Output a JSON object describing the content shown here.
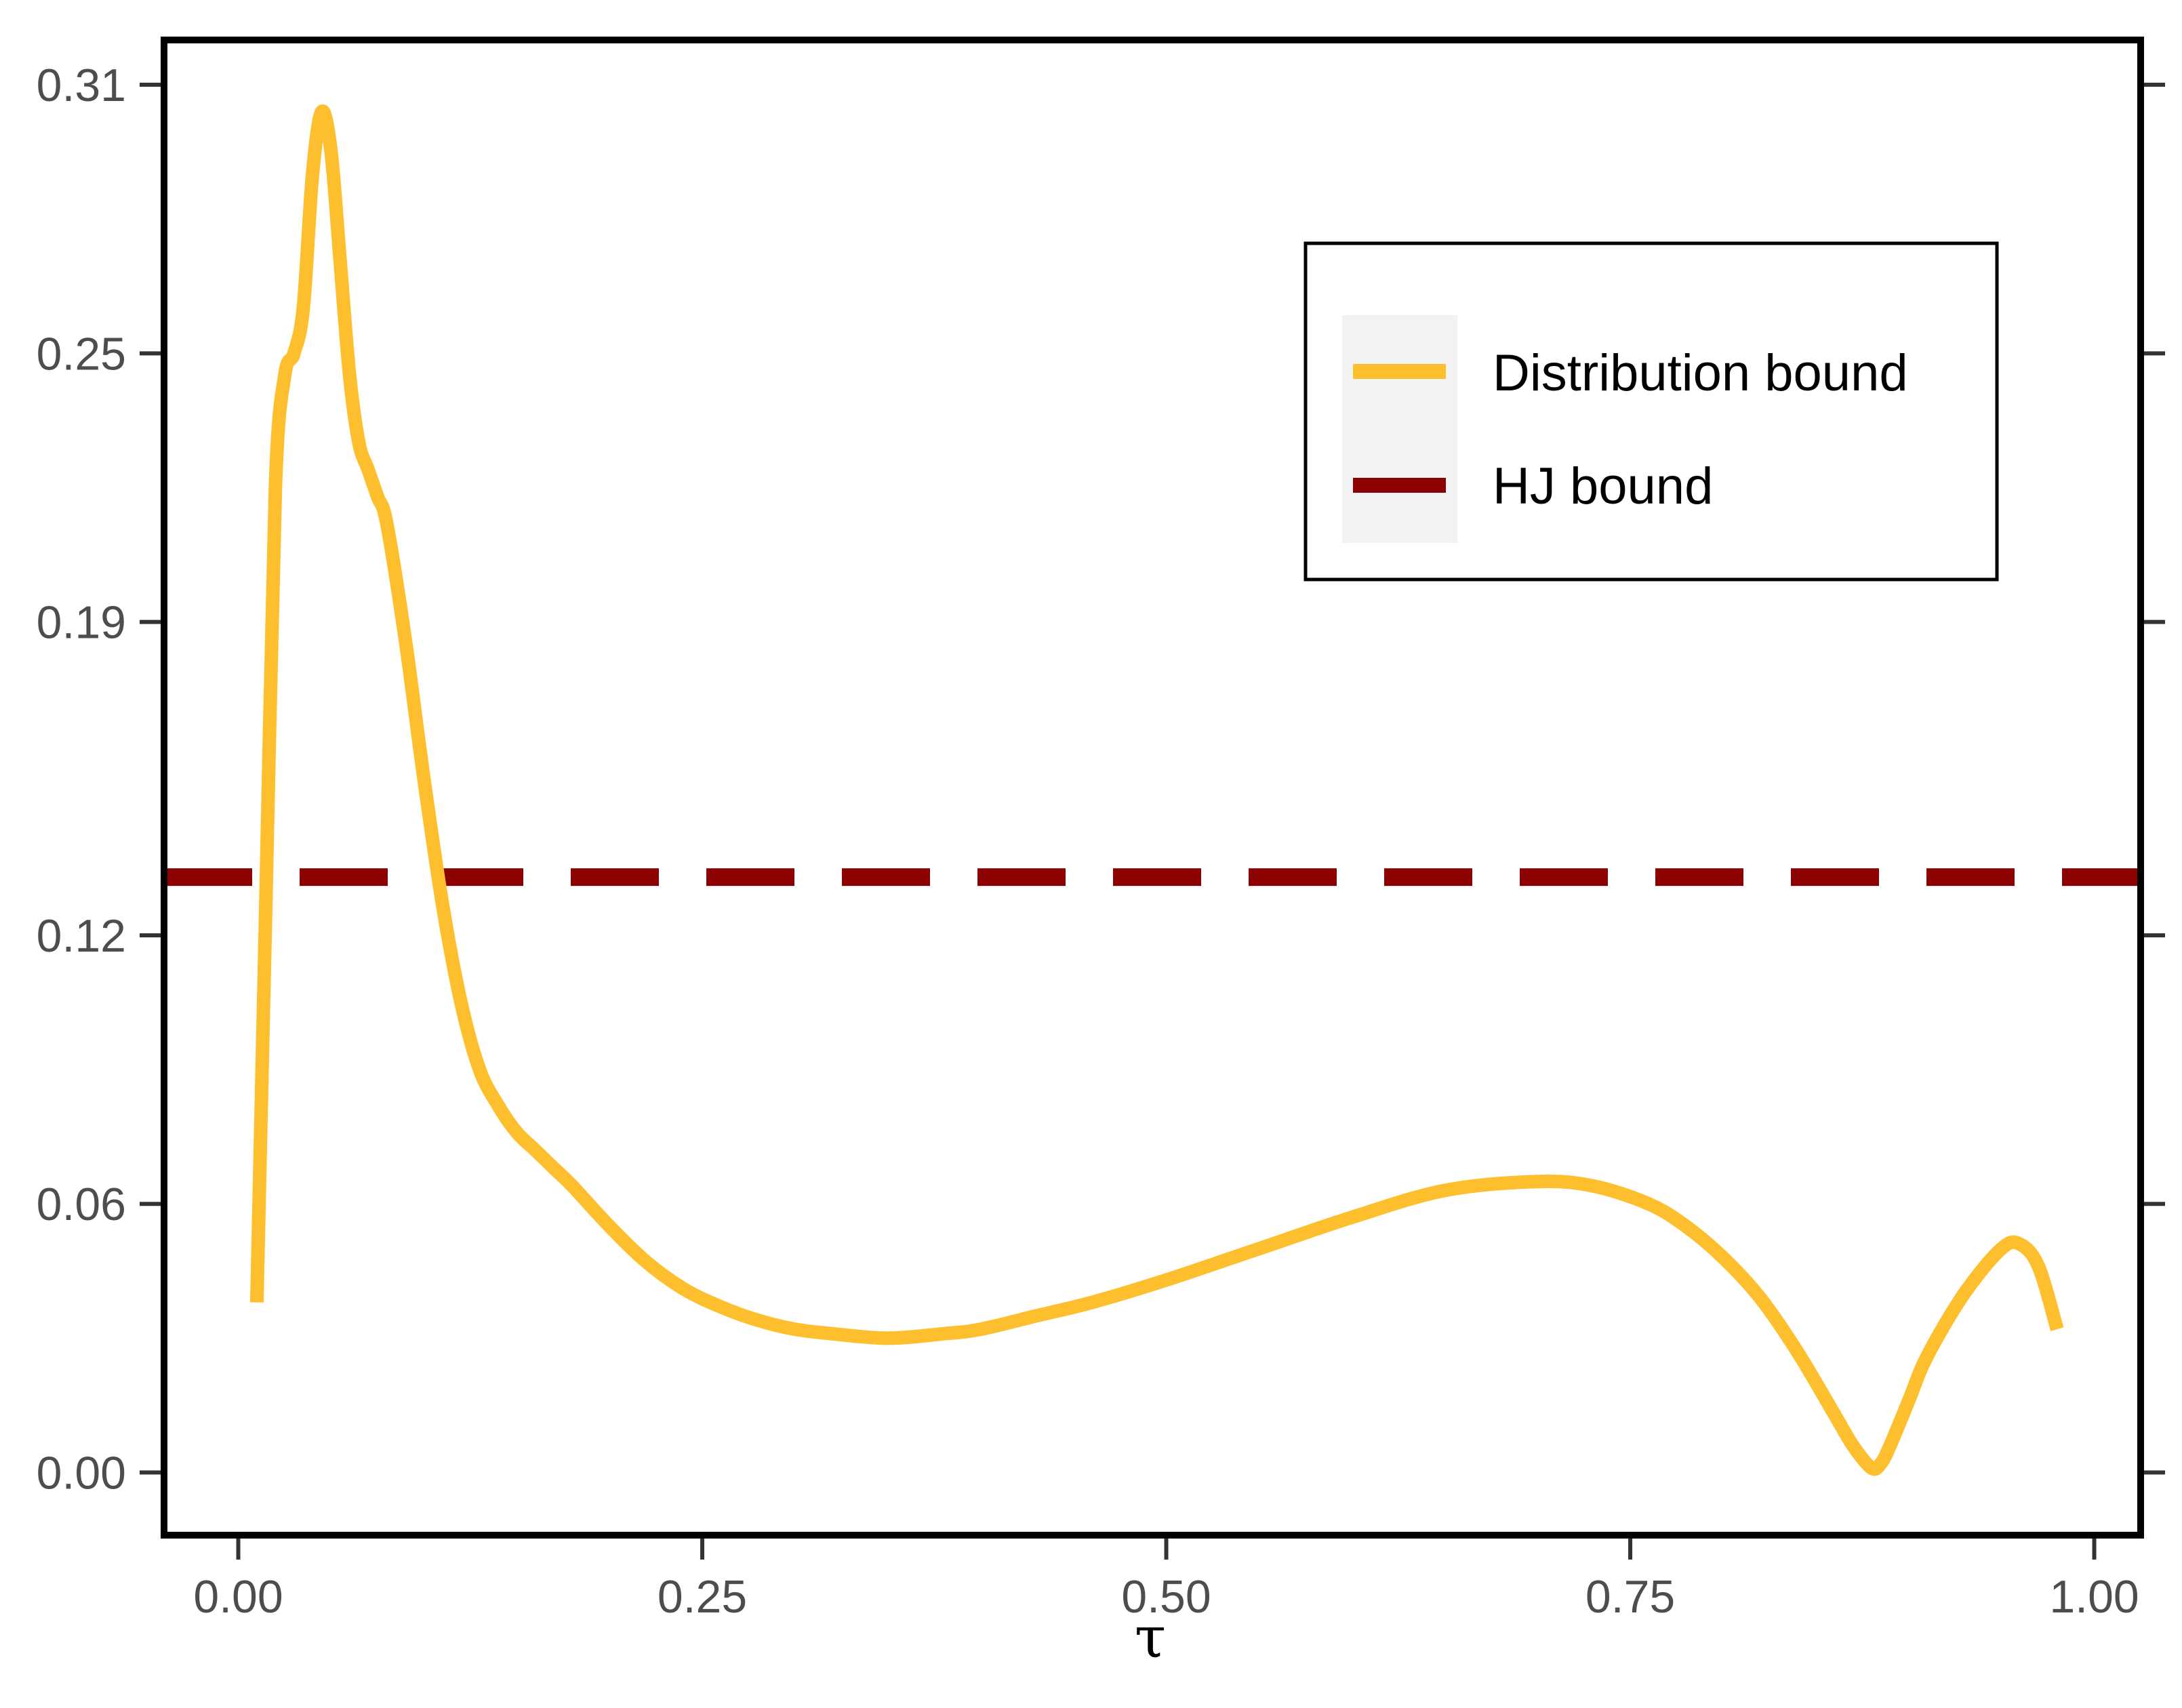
{
  "chart_data": {
    "type": "line",
    "xlabel": "τ",
    "ylabel": "",
    "title": "",
    "xlim": [
      -0.04,
      1.025
    ],
    "ylim": [
      -0.014,
      0.32
    ],
    "x_ticks": [
      0.0,
      0.25,
      0.5,
      0.75,
      1.0
    ],
    "x_tick_labels": [
      "0.00",
      "0.25",
      "0.50",
      "0.75",
      "1.00"
    ],
    "y_ticks": [
      0.0,
      0.06,
      0.12,
      0.19,
      0.25,
      0.31
    ],
    "y_tick_labels": [
      "0.00",
      "0.06",
      "0.12",
      "0.19",
      "0.25",
      "0.31"
    ],
    "grid": false,
    "legend_position": "top-right",
    "series": [
      {
        "name": "Distribution bound",
        "color": "#fdbf2d",
        "style": "solid",
        "x": [
          0.01,
          0.015,
          0.02,
          0.025,
          0.03,
          0.035,
          0.04,
          0.045,
          0.05,
          0.055,
          0.06,
          0.065,
          0.07,
          0.075,
          0.08,
          0.09,
          0.1,
          0.11,
          0.12,
          0.13,
          0.14,
          0.15,
          0.16,
          0.17,
          0.18,
          0.2,
          0.22,
          0.24,
          0.26,
          0.28,
          0.3,
          0.32,
          0.35,
          0.38,
          0.4,
          0.43,
          0.46,
          0.5,
          0.55,
          0.6,
          0.65,
          0.7,
          0.73,
          0.76,
          0.78,
          0.8,
          0.82,
          0.84,
          0.86,
          0.87,
          0.88,
          0.885,
          0.89,
          0.9,
          0.91,
          0.93,
          0.95,
          0.96,
          0.97,
          0.98
        ],
        "y": [
          0.038,
          0.13,
          0.22,
          0.245,
          0.25,
          0.26,
          0.29,
          0.304,
          0.295,
          0.27,
          0.245,
          0.23,
          0.224,
          0.218,
          0.212,
          0.186,
          0.155,
          0.127,
          0.105,
          0.09,
          0.082,
          0.076,
          0.072,
          0.068,
          0.064,
          0.055,
          0.047,
          0.041,
          0.037,
          0.034,
          0.032,
          0.031,
          0.03,
          0.031,
          0.032,
          0.035,
          0.038,
          0.043,
          0.05,
          0.057,
          0.063,
          0.065,
          0.064,
          0.06,
          0.055,
          0.048,
          0.039,
          0.027,
          0.013,
          0.006,
          0.001,
          0.002,
          0.006,
          0.016,
          0.026,
          0.04,
          0.05,
          0.051,
          0.046,
          0.032
        ]
      },
      {
        "name": "HJ bound",
        "color": "#8b0000",
        "style": "dashed",
        "x": [
          -0.04,
          1.025
        ],
        "y": [
          0.133,
          0.133
        ]
      }
    ]
  },
  "legend": {
    "items": [
      {
        "label": "Distribution bound",
        "color": "#fdbf2d",
        "style": "solid"
      },
      {
        "label": "HJ bound",
        "color": "#8b0000",
        "style": "dashed"
      }
    ]
  }
}
